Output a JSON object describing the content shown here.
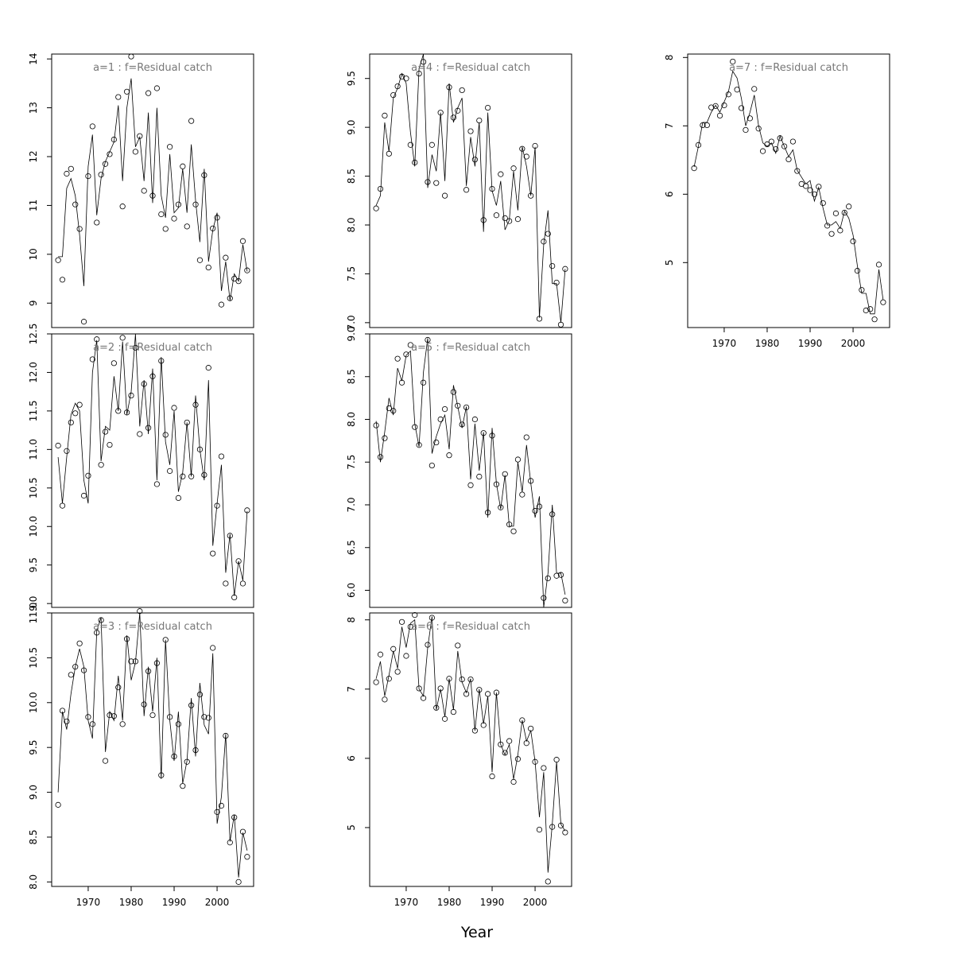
{
  "chart_data": {
    "type": "scatter",
    "xlabel": "Year",
    "x_ticks": [
      1970,
      1980,
      1990,
      2000
    ],
    "year_start": 1963,
    "year_end": 2007,
    "panels": [
      {
        "title": "a=1  :  f=Residual catch",
        "ylim": [
          8.5,
          14.1
        ],
        "y_ticks": [
          9,
          10,
          11,
          12,
          13,
          14
        ],
        "observed": [
          9.88,
          9.48,
          11.65,
          11.75,
          11.02,
          10.52,
          8.62,
          11.6,
          12.62,
          10.65,
          11.63,
          11.85,
          12.05,
          12.35,
          13.22,
          10.98,
          13.33,
          14.05,
          12.1,
          12.42,
          11.3,
          13.3,
          11.2,
          13.4,
          10.82,
          10.52,
          12.2,
          10.73,
          11.02,
          11.8,
          10.57,
          12.73,
          11.02,
          9.88,
          11.62,
          9.73,
          10.53,
          10.75,
          8.97,
          9.93,
          9.1,
          9.5,
          9.45,
          10.27,
          9.67
        ],
        "fitted": [
          9.95,
          9.95,
          11.35,
          11.55,
          11.2,
          10.4,
          9.35,
          11.8,
          12.45,
          10.8,
          11.55,
          11.9,
          12.1,
          12.3,
          13.05,
          11.5,
          13.0,
          13.6,
          12.2,
          12.4,
          11.5,
          12.9,
          11.05,
          13.0,
          11.2,
          10.75,
          12.05,
          10.85,
          10.95,
          11.75,
          10.85,
          12.25,
          11.1,
          10.25,
          11.75,
          9.85,
          10.5,
          10.85,
          9.25,
          9.85,
          9.05,
          9.6,
          9.45,
          10.2,
          9.65
        ]
      },
      {
        "title": "a=2  :  f=Residual catch",
        "ylim": [
          8.95,
          12.5
        ],
        "y_ticks": [
          9.0,
          9.5,
          10.0,
          10.5,
          11.0,
          11.5,
          12.0,
          12.5
        ],
        "observed": [
          11.05,
          10.27,
          10.98,
          11.35,
          11.47,
          11.58,
          10.4,
          10.66,
          12.17,
          12.43,
          10.8,
          11.23,
          11.06,
          12.12,
          11.5,
          12.45,
          11.48,
          11.7,
          12.32,
          11.2,
          11.85,
          11.28,
          11.95,
          10.55,
          12.15,
          11.19,
          10.72,
          11.54,
          10.37,
          10.65,
          11.35,
          10.65,
          11.58,
          11.0,
          10.67,
          12.06,
          9.65,
          10.27,
          10.91,
          9.26,
          9.88,
          9.08,
          9.55,
          9.26,
          10.21
        ],
        "fitted": [
          10.9,
          10.3,
          10.9,
          11.45,
          11.6,
          11.5,
          10.6,
          10.3,
          12.0,
          12.42,
          10.85,
          11.3,
          11.25,
          11.95,
          11.5,
          12.4,
          11.45,
          11.75,
          12.5,
          11.3,
          11.9,
          11.2,
          12.05,
          10.6,
          12.2,
          11.1,
          10.8,
          11.5,
          10.45,
          10.7,
          11.35,
          10.65,
          11.7,
          11.0,
          10.6,
          11.9,
          9.75,
          10.3,
          10.8,
          9.4,
          9.9,
          9.1,
          9.55,
          9.3,
          10.2
        ]
      },
      {
        "title": "a=3  :  f=Residual catch",
        "ylim": [
          7.95,
          11.0
        ],
        "y_ticks": [
          8.0,
          8.5,
          9.0,
          9.5,
          10.0,
          10.5,
          11.0
        ],
        "observed": [
          8.86,
          9.91,
          9.79,
          10.31,
          10.4,
          10.66,
          10.36,
          9.84,
          9.76,
          10.78,
          10.92,
          9.35,
          9.86,
          9.85,
          10.17,
          9.76,
          10.71,
          10.46,
          10.46,
          11.02,
          9.98,
          10.35,
          9.86,
          10.44,
          9.19,
          10.7,
          9.84,
          9.4,
          9.76,
          9.07,
          9.34,
          9.97,
          9.47,
          10.09,
          9.84,
          9.83,
          10.61,
          8.78,
          8.85,
          9.63,
          8.44,
          8.72,
          8.0,
          8.56,
          8.28
        ],
        "fitted": [
          9.0,
          9.9,
          9.7,
          10.1,
          10.4,
          10.6,
          10.4,
          9.8,
          9.6,
          10.8,
          10.95,
          9.45,
          9.9,
          9.8,
          10.3,
          9.8,
          10.75,
          10.25,
          10.45,
          11.0,
          9.85,
          10.4,
          9.9,
          10.5,
          9.15,
          10.7,
          9.8,
          9.35,
          9.9,
          9.1,
          9.35,
          10.05,
          9.4,
          10.22,
          9.75,
          9.65,
          10.55,
          8.65,
          8.95,
          9.65,
          8.45,
          8.75,
          8.05,
          8.55,
          8.35
        ]
      },
      {
        "title": "a=4  :  f=Residual catch",
        "ylim": [
          6.95,
          9.75
        ],
        "y_ticks": [
          7.0,
          7.5,
          8.0,
          8.5,
          9.0,
          9.5
        ],
        "observed": [
          8.17,
          8.37,
          9.12,
          8.73,
          9.33,
          9.42,
          9.52,
          9.5,
          8.82,
          8.64,
          9.55,
          9.67,
          8.44,
          8.82,
          8.43,
          9.15,
          8.3,
          9.41,
          9.1,
          9.17,
          9.38,
          8.36,
          8.96,
          8.67,
          9.07,
          8.05,
          9.2,
          8.37,
          8.1,
          8.52,
          8.07,
          8.04,
          8.58,
          8.06,
          8.78,
          8.7,
          8.3,
          8.81,
          7.04,
          7.83,
          7.91,
          7.58,
          7.41,
          6.98,
          7.55
        ],
        "fitted": [
          8.2,
          8.3,
          9.05,
          8.75,
          9.3,
          9.4,
          9.55,
          9.45,
          8.95,
          8.6,
          9.6,
          9.75,
          8.38,
          8.72,
          8.55,
          9.15,
          8.45,
          9.45,
          9.05,
          9.2,
          9.3,
          8.4,
          8.9,
          8.6,
          9.05,
          7.93,
          9.15,
          8.35,
          8.2,
          8.45,
          7.95,
          8.05,
          8.55,
          8.15,
          8.8,
          8.6,
          8.3,
          8.8,
          7.05,
          7.8,
          8.15,
          7.4,
          7.4,
          7.0,
          7.55
        ]
      },
      {
        "title": "a=5  :  f=Residual catch",
        "ylim": [
          5.8,
          9.0
        ],
        "y_ticks": [
          6.0,
          6.5,
          7.0,
          7.5,
          8.0,
          8.5,
          9.0
        ],
        "observed": [
          7.93,
          7.56,
          7.78,
          8.13,
          8.1,
          8.71,
          8.43,
          8.76,
          8.87,
          7.91,
          7.7,
          8.43,
          8.93,
          7.46,
          7.73,
          8.0,
          8.12,
          7.58,
          8.32,
          8.16,
          7.94,
          8.14,
          7.23,
          8.0,
          7.33,
          7.84,
          6.91,
          7.81,
          7.24,
          6.97,
          7.36,
          6.77,
          6.69,
          7.53,
          7.12,
          7.79,
          7.28,
          6.93,
          6.98,
          5.91,
          6.14,
          6.89,
          6.17,
          6.18,
          5.88
        ],
        "fitted": [
          7.98,
          7.5,
          7.85,
          8.25,
          8.05,
          8.6,
          8.45,
          8.75,
          8.8,
          7.95,
          7.68,
          8.55,
          8.95,
          7.6,
          7.8,
          7.95,
          8.05,
          7.65,
          8.4,
          8.15,
          7.9,
          8.15,
          7.3,
          7.95,
          7.4,
          7.85,
          6.85,
          7.9,
          7.25,
          6.95,
          7.35,
          6.75,
          6.75,
          7.5,
          7.15,
          7.7,
          7.25,
          6.85,
          7.1,
          5.8,
          6.2,
          7.0,
          6.2,
          6.2,
          5.95
        ]
      },
      {
        "title": "a=6  :  f=Residual catch",
        "ylim": [
          4.15,
          8.1
        ],
        "y_ticks": [
          5,
          6,
          7,
          8
        ],
        "observed": [
          7.1,
          7.5,
          6.85,
          7.15,
          7.58,
          7.25,
          7.97,
          7.48,
          7.9,
          8.07,
          7.01,
          6.87,
          7.64,
          8.03,
          6.73,
          7.01,
          6.57,
          7.15,
          6.67,
          7.63,
          7.14,
          6.93,
          7.14,
          6.4,
          6.99,
          6.48,
          6.93,
          5.74,
          6.95,
          6.2,
          6.08,
          6.25,
          5.66,
          5.99,
          6.55,
          6.22,
          6.43,
          5.95,
          4.97,
          5.86,
          4.22,
          5.01,
          5.98,
          5.03,
          4.93
        ],
        "fitted": [
          7.15,
          7.4,
          6.9,
          7.2,
          7.55,
          7.3,
          7.9,
          7.6,
          7.95,
          8.0,
          7.0,
          6.9,
          7.6,
          8.05,
          6.7,
          7.0,
          6.6,
          7.15,
          6.7,
          7.55,
          7.1,
          6.95,
          7.15,
          6.4,
          7.0,
          6.5,
          6.9,
          5.8,
          6.95,
          6.2,
          6.05,
          6.2,
          5.7,
          6.05,
          6.55,
          6.25,
          6.4,
          5.95,
          5.15,
          5.8,
          4.35,
          5.05,
          5.95,
          5.05,
          4.95
        ]
      },
      {
        "title": "a=7  :  f=Residual catch",
        "ylim": [
          4.05,
          8.05
        ],
        "y_ticks": [
          5,
          6,
          7,
          8
        ],
        "observed": [
          6.38,
          6.72,
          7.01,
          7.01,
          7.27,
          7.29,
          7.15,
          7.3,
          7.46,
          7.94,
          7.53,
          7.26,
          6.94,
          7.11,
          7.54,
          6.96,
          6.63,
          6.73,
          6.77,
          6.66,
          6.82,
          6.7,
          6.51,
          6.77,
          6.34,
          6.15,
          6.12,
          6.06,
          6.0,
          6.11,
          5.87,
          5.54,
          5.42,
          5.72,
          5.47,
          5.73,
          5.82,
          5.31,
          4.88,
          4.6,
          4.3,
          4.32,
          4.17,
          4.97,
          4.42
        ],
        "fitted": [
          6.4,
          6.7,
          7.05,
          7.05,
          7.2,
          7.3,
          7.2,
          7.35,
          7.5,
          7.8,
          7.7,
          7.4,
          7.0,
          7.2,
          7.45,
          7.0,
          6.75,
          6.7,
          6.75,
          6.6,
          6.85,
          6.7,
          6.55,
          6.65,
          6.35,
          6.25,
          6.15,
          6.2,
          5.9,
          6.1,
          5.8,
          5.55,
          5.55,
          5.6,
          5.5,
          5.75,
          5.65,
          5.4,
          4.95,
          4.55,
          4.55,
          4.25,
          4.25,
          4.9,
          4.45
        ]
      }
    ]
  }
}
